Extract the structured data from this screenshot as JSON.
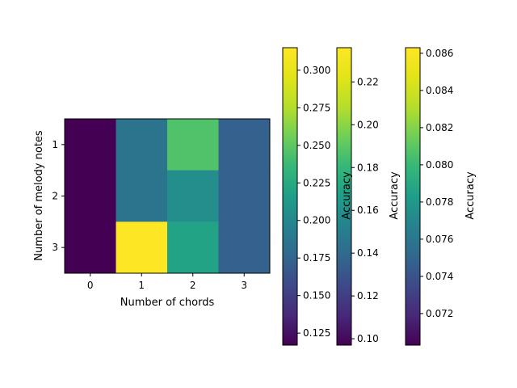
{
  "chart_data": {
    "type": "heatmap",
    "xlabel": "Number of chords",
    "ylabel": "Number of melody notes",
    "x_ticks": [
      "0",
      "1",
      "2",
      "3"
    ],
    "y_ticks": [
      "1",
      "2",
      "3"
    ],
    "x": [
      0,
      1,
      2,
      3
    ],
    "y": [
      1,
      2,
      3
    ],
    "colormap": "viridis",
    "color_range": [
      0.117,
      0.315
    ],
    "values": [
      [
        0.117,
        0.185,
        0.245,
        0.172
      ],
      [
        0.117,
        0.185,
        0.205,
        0.172
      ],
      [
        0.117,
        0.315,
        0.22,
        0.172
      ]
    ],
    "colorbars": [
      {
        "label": "",
        "range": [
          0.117,
          0.315
        ],
        "ticks": [
          0.125,
          0.15,
          0.175,
          0.2,
          0.225,
          0.25,
          0.275,
          0.3
        ],
        "tick_labels": [
          "0.125",
          "0.150",
          "0.175",
          "0.200",
          "0.225",
          "0.250",
          "0.275",
          "0.300"
        ]
      },
      {
        "label": "Accuracy",
        "range": [
          0.097,
          0.236
        ],
        "ticks": [
          0.1,
          0.12,
          0.14,
          0.16,
          0.18,
          0.2,
          0.22
        ],
        "tick_labels": [
          "0.10",
          "0.12",
          "0.14",
          "0.16",
          "0.18",
          "0.20",
          "0.22"
        ]
      },
      {
        "label": "Accuracy",
        "range": [
          0.0703,
          0.0863
        ],
        "ticks": [
          0.072,
          0.074,
          0.076,
          0.078,
          0.08,
          0.082,
          0.084,
          0.086
        ],
        "tick_labels": [
          "0.072",
          "0.074",
          "0.076",
          "0.078",
          "0.080",
          "0.082",
          "0.084",
          "0.086"
        ]
      }
    ],
    "extra_label": "Accuracy"
  }
}
